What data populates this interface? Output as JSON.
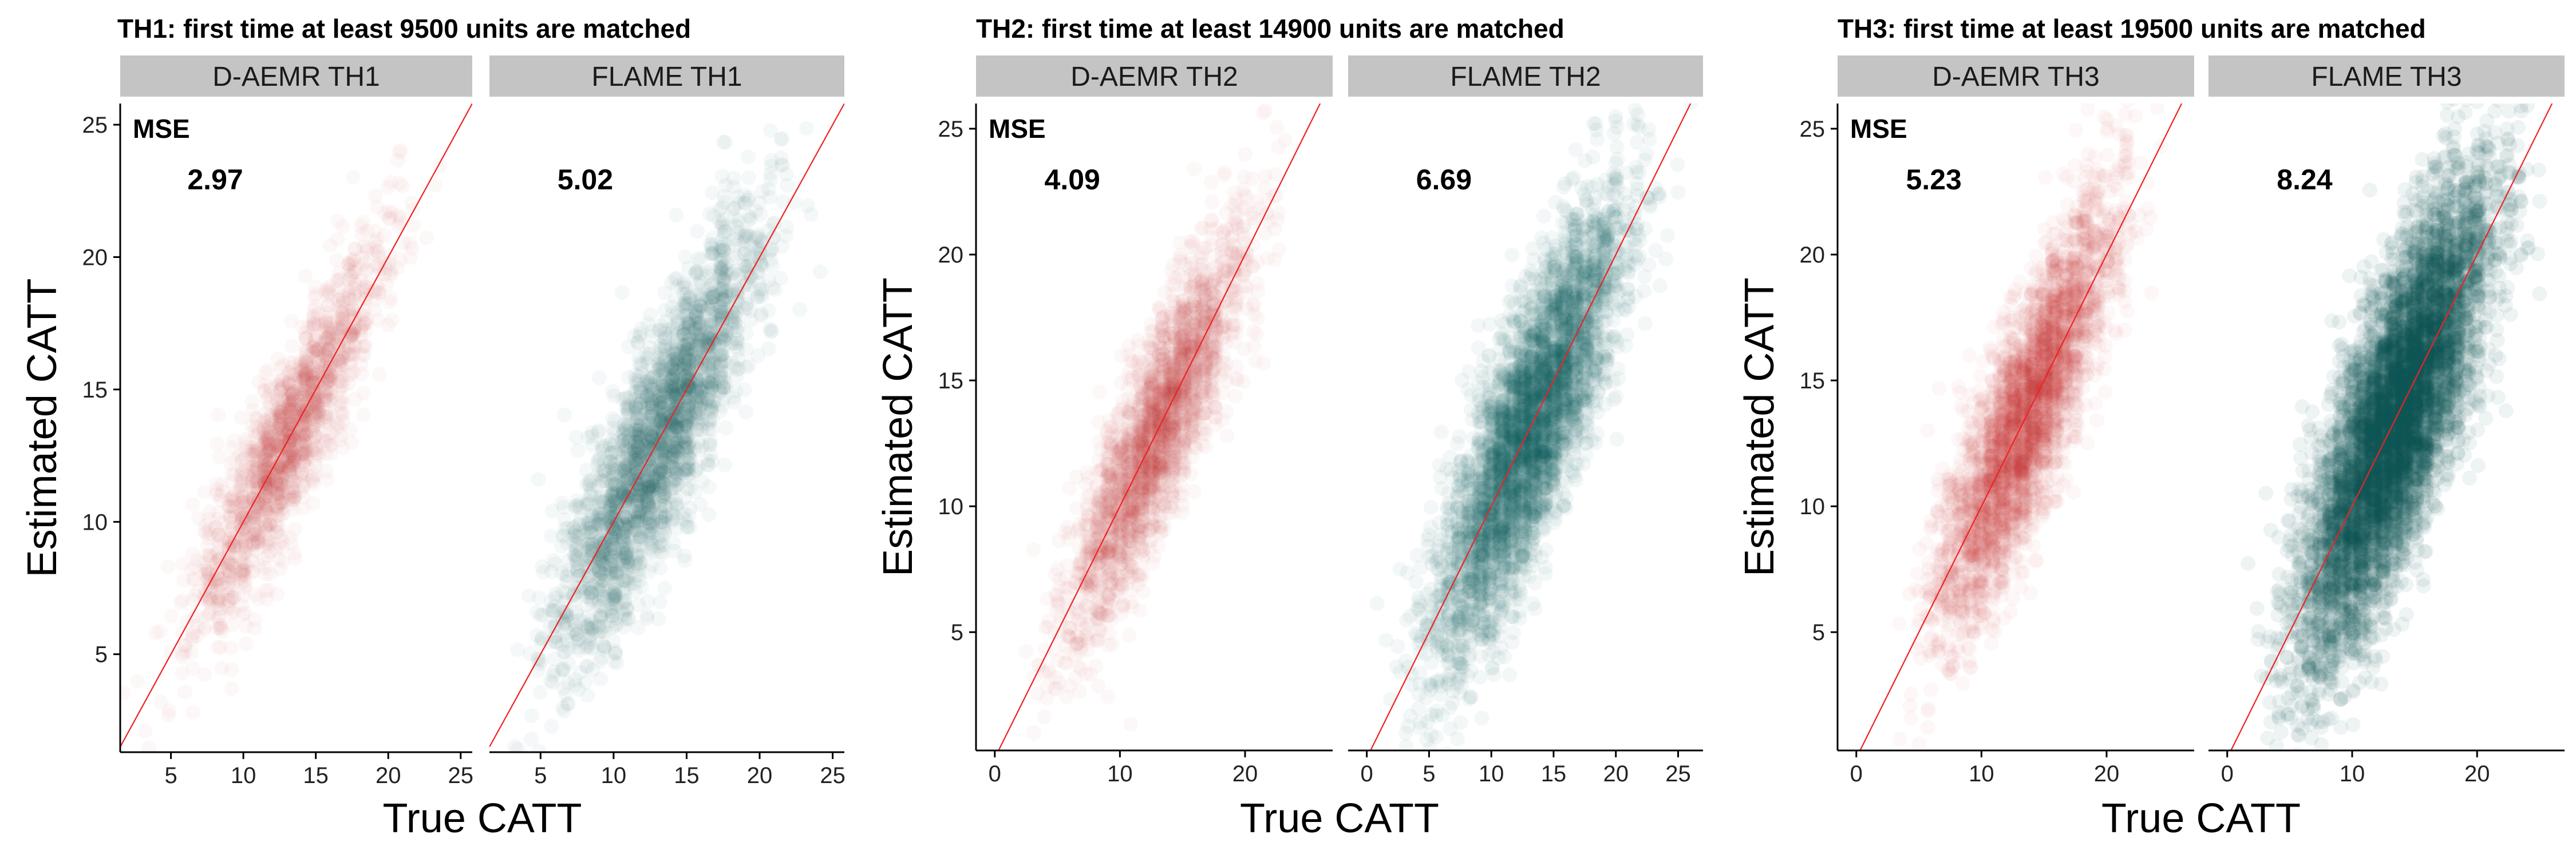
{
  "colors": {
    "daemr": "#c8323c",
    "flame": "#0d5c5c",
    "strip_bg": "#c4c4c4",
    "ref_line": "#ee2222"
  },
  "chart_data": [
    {
      "type": "scatter",
      "title": "TH1: first time at least 9500 units are matched",
      "xlabel": "True CATT",
      "ylabel": "Estimated CATT",
      "xlim": [
        1.5,
        25.8
      ],
      "ylim": [
        1.3,
        25.8
      ],
      "x_ticks": [
        "5",
        "10",
        "15",
        "20",
        "25"
      ],
      "y_ticks": [
        "5",
        "10",
        "15",
        "20",
        "25"
      ],
      "reference_line": "y = x",
      "mse_label": "MSE",
      "panels": [
        {
          "name": "D-AEMR TH1",
          "method": "daemr",
          "mse": "2.97",
          "x_center": 13.0,
          "x_sd": 3.2,
          "y_sd": 1.8,
          "n": 1700,
          "alpha": 0.035
        },
        {
          "name": "FLAME TH1",
          "method": "flame",
          "mse": "5.02",
          "x_center": 13.0,
          "x_sd": 3.4,
          "y_sd": 2.3,
          "n": 2600,
          "alpha": 0.045
        }
      ]
    },
    {
      "type": "scatter",
      "title": "TH2: first time at least 14900 units are matched",
      "xlabel": "True CATT",
      "ylabel": "Estimated CATT",
      "xlim": [
        -1.5,
        27.0
      ],
      "ylim": [
        0.3,
        26.0
      ],
      "x_ticks": [
        "0",
        "5",
        "10",
        "15",
        "20",
        "25"
      ],
      "y_ticks": [
        "5",
        "10",
        "15",
        "20",
        "25"
      ],
      "panel_x_ticks": [
        [
          "0",
          "10",
          "20"
        ],
        [
          "0",
          "5",
          "10",
          "15",
          "20",
          "25"
        ]
      ],
      "reference_line": "y = x",
      "mse_label": "MSE",
      "panels": [
        {
          "name": "D-AEMR TH2",
          "method": "daemr",
          "mse": "4.09",
          "x_center": 13.0,
          "x_sd": 3.4,
          "y_sd": 2.2,
          "n": 2600,
          "alpha": 0.035
        },
        {
          "name": "FLAME TH2",
          "method": "flame",
          "mse": "6.69",
          "x_center": 13.0,
          "x_sd": 3.6,
          "y_sd": 2.8,
          "n": 4200,
          "alpha": 0.05
        }
      ]
    },
    {
      "type": "scatter",
      "title": "TH3: first time at least 19500 units are matched",
      "xlabel": "True CATT",
      "ylabel": "Estimated CATT",
      "xlim": [
        -1.5,
        27.0
      ],
      "ylim": [
        0.3,
        26.0
      ],
      "x_ticks": [
        "0",
        "10",
        "20"
      ],
      "y_ticks": [
        "5",
        "10",
        "15",
        "20",
        "25"
      ],
      "reference_line": "y = x",
      "mse_label": "MSE",
      "panels": [
        {
          "name": "D-AEMR TH3",
          "method": "daemr",
          "mse": "5.23",
          "x_center": 13.5,
          "x_sd": 3.4,
          "y_sd": 2.5,
          "n": 3400,
          "alpha": 0.04
        },
        {
          "name": "FLAME TH3",
          "method": "flame",
          "mse": "8.24",
          "x_center": 13.5,
          "x_sd": 3.6,
          "y_sd": 3.2,
          "n": 6500,
          "alpha": 0.07
        }
      ]
    }
  ]
}
